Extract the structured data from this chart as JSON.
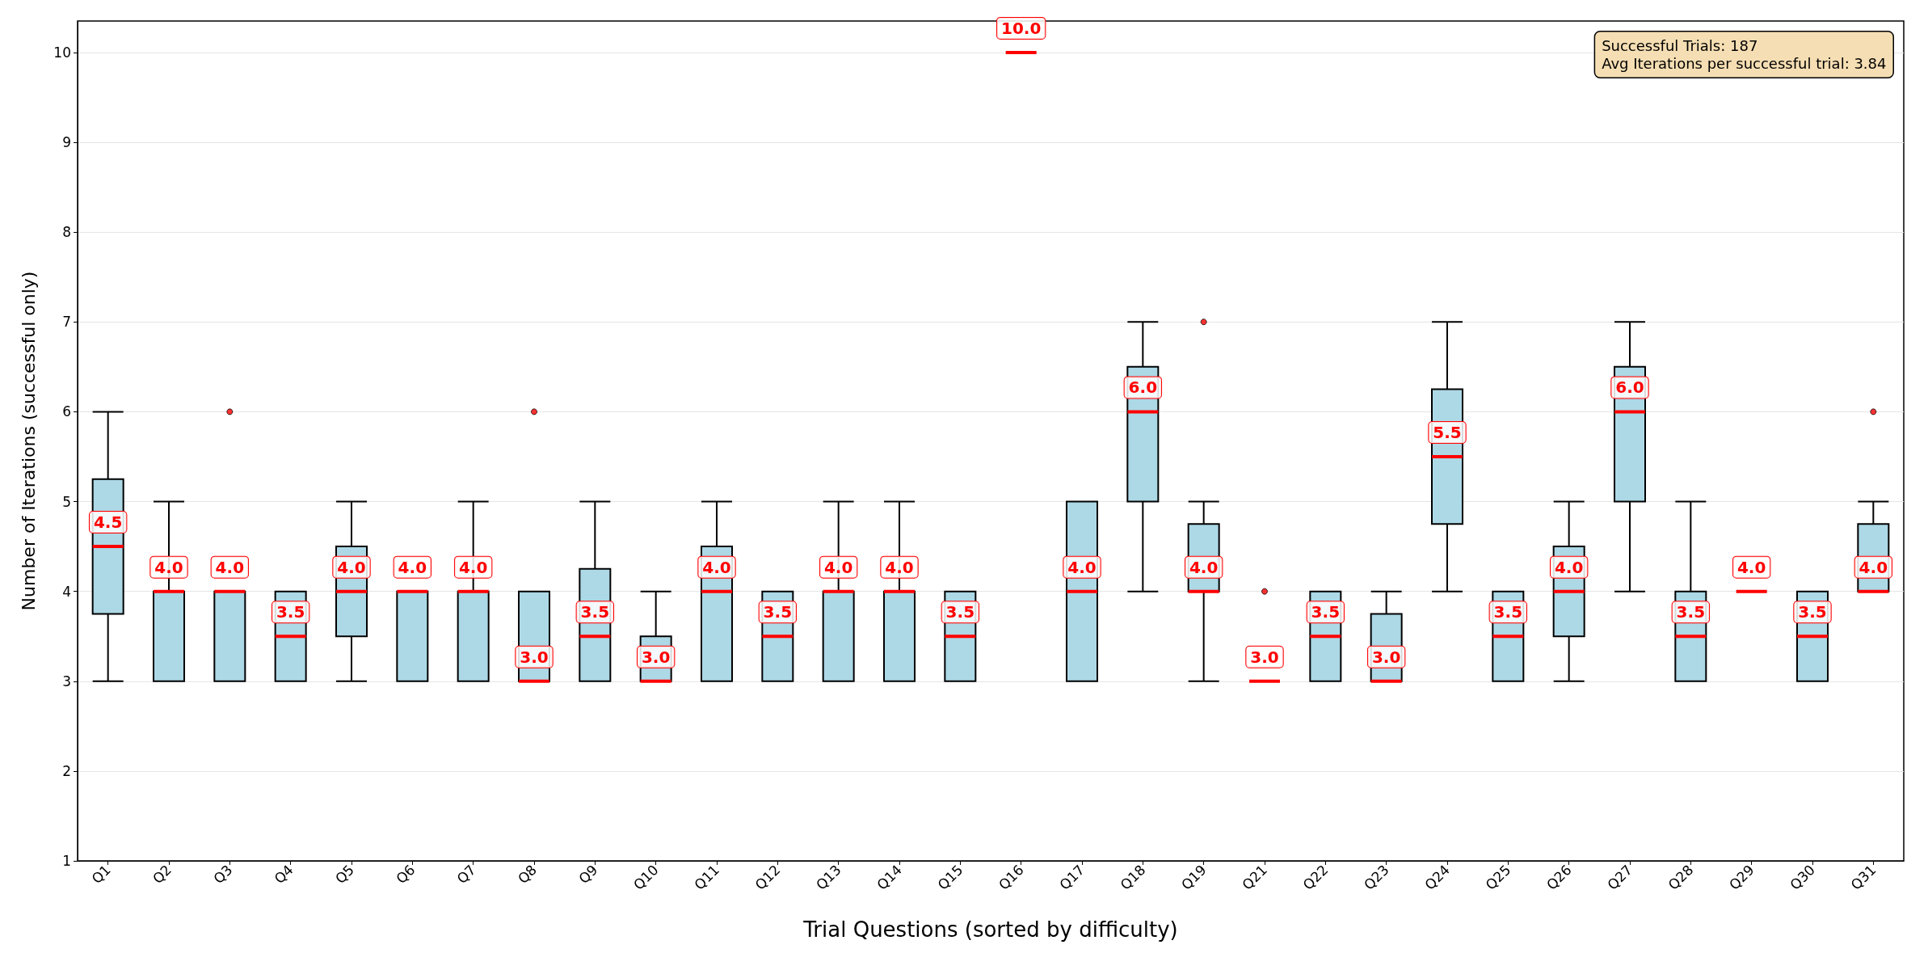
{
  "chart_data": {
    "type": "box",
    "xlabel": "Trial Questions (sorted by difficulty)",
    "ylabel": "Number of Iterations (successful only)",
    "categories": [
      "Q1",
      "Q2",
      "Q3",
      "Q4",
      "Q5",
      "Q6",
      "Q7",
      "Q8",
      "Q9",
      "Q10",
      "Q11",
      "Q12",
      "Q13",
      "Q14",
      "Q15",
      "Q16",
      "Q17",
      "Q18",
      "Q19",
      "Q21",
      "Q22",
      "Q23",
      "Q24",
      "Q25",
      "Q26",
      "Q27",
      "Q28",
      "Q29",
      "Q30",
      "Q31"
    ],
    "series": [
      {
        "color": "#add8e6",
        "value_labels": [
          "4.5",
          "4.0",
          "4.0",
          "3.5",
          "4.0",
          "4.0",
          "4.0",
          "3.0",
          "3.5",
          "3.0",
          "4.0",
          "3.5",
          "4.0",
          "4.0",
          "3.5",
          "10.0",
          "4.0",
          "6.0",
          "4.0",
          "3.0",
          "3.5",
          "3.0",
          "5.5",
          "3.5",
          "4.0",
          "6.0",
          "3.5",
          "4.0",
          "3.5",
          "4.0"
        ],
        "boxes": [
          {
            "low": 3,
            "q1": 3.75,
            "median": 4.5,
            "q3": 5.25,
            "high": 6
          },
          {
            "low": 3,
            "q1": 3,
            "median": 4,
            "q3": 4,
            "high": 5
          },
          {
            "low": 3,
            "q1": 3,
            "median": 4,
            "q3": 4,
            "high": 4,
            "outliers": [
              6
            ]
          },
          {
            "low": 3,
            "q1": 3,
            "median": 3.5,
            "q3": 4,
            "high": 4
          },
          {
            "low": 3,
            "q1": 3.5,
            "median": 4,
            "q3": 4.5,
            "high": 5
          },
          {
            "low": 3,
            "q1": 3,
            "median": 4,
            "q3": 4,
            "high": 4
          },
          {
            "low": 3,
            "q1": 3,
            "median": 4,
            "q3": 4,
            "high": 5
          },
          {
            "low": 3,
            "q1": 3,
            "median": 3,
            "q3": 4,
            "high": 4,
            "outliers": [
              6
            ]
          },
          {
            "low": 3,
            "q1": 3,
            "median": 3.5,
            "q3": 4.25,
            "high": 5
          },
          {
            "low": 3,
            "q1": 3,
            "median": 3,
            "q3": 3.5,
            "high": 4
          },
          {
            "low": 3,
            "q1": 3,
            "median": 4,
            "q3": 4.5,
            "high": 5
          },
          {
            "low": 3,
            "q1": 3,
            "median": 3.5,
            "q3": 4,
            "high": 4
          },
          {
            "low": 3,
            "q1": 3,
            "median": 4,
            "q3": 4,
            "high": 5
          },
          {
            "low": 3,
            "q1": 3,
            "median": 4,
            "q3": 4,
            "high": 5
          },
          {
            "low": 3,
            "q1": 3,
            "median": 3.5,
            "q3": 4,
            "high": 4
          },
          {
            "low": 10,
            "q1": 10,
            "median": 10,
            "q3": 10,
            "high": 10
          },
          {
            "low": 3,
            "q1": 3,
            "median": 4,
            "q3": 5,
            "high": 5
          },
          {
            "low": 4,
            "q1": 5,
            "median": 6,
            "q3": 6.5,
            "high": 7
          },
          {
            "low": 3,
            "q1": 4,
            "median": 4,
            "q3": 4.75,
            "high": 5,
            "outliers": [
              7
            ]
          },
          {
            "low": 3,
            "q1": 3,
            "median": 3,
            "q3": 3,
            "high": 3,
            "outliers": [
              4
            ]
          },
          {
            "low": 3,
            "q1": 3,
            "median": 3.5,
            "q3": 4,
            "high": 4
          },
          {
            "low": 3,
            "q1": 3,
            "median": 3,
            "q3": 3.75,
            "high": 4
          },
          {
            "low": 4,
            "q1": 4.75,
            "median": 5.5,
            "q3": 6.25,
            "high": 7
          },
          {
            "low": 3,
            "q1": 3,
            "median": 3.5,
            "q3": 4,
            "high": 4
          },
          {
            "low": 3,
            "q1": 3.5,
            "median": 4,
            "q3": 4.5,
            "high": 5
          },
          {
            "low": 4,
            "q1": 5,
            "median": 6,
            "q3": 6.5,
            "high": 7
          },
          {
            "low": 3,
            "q1": 3,
            "median": 3.5,
            "q3": 4,
            "high": 5
          },
          {
            "low": 4,
            "q1": 4,
            "median": 4,
            "q3": 4,
            "high": 4
          },
          {
            "low": 3,
            "q1": 3,
            "median": 3.5,
            "q3": 4,
            "high": 4
          },
          {
            "low": 4,
            "q1": 4,
            "median": 4,
            "q3": 4.75,
            "high": 5,
            "outliers": [
              6
            ]
          }
        ]
      }
    ],
    "ylim": [
      1,
      10.35
    ],
    "yticks": [
      1,
      2,
      3,
      4,
      5,
      6,
      7,
      8,
      9,
      10
    ],
    "grid": "y",
    "annotations": [
      "Successful Trials: 187",
      "Avg Iterations per successful trial: 3.84"
    ]
  }
}
